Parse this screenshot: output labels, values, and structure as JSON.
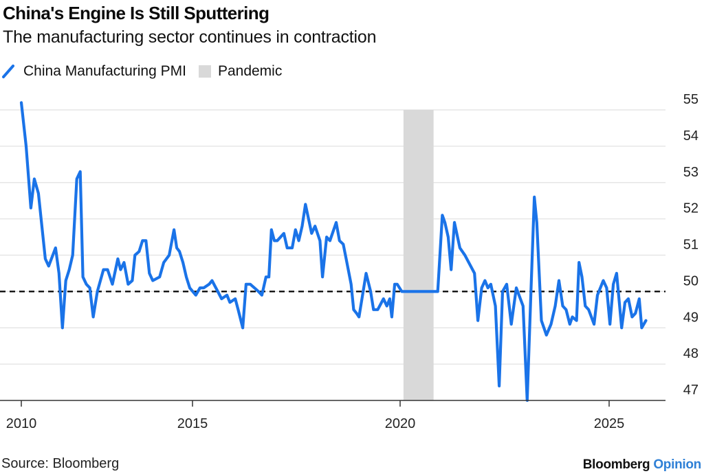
{
  "header": {
    "title": "China's Engine Is Still Sputtering",
    "subtitle": "The manufacturing sector continues in contraction"
  },
  "legend": [
    {
      "label": "China Manufacturing PMI",
      "kind": "line",
      "color": "#1a73e8"
    },
    {
      "label": "Pandemic",
      "kind": "band",
      "color": "#d9d9d9"
    }
  ],
  "footer": {
    "source": "Source: Bloomberg",
    "brand_primary": "Bloomberg",
    "brand_secondary": "Opinion"
  },
  "chart_data": {
    "type": "line",
    "title": "China's Engine Is Still Sputtering",
    "subtitle": "The manufacturing sector continues in contraction",
    "xlabel": "",
    "ylabel": "",
    "x_ticks": [
      2010,
      2015,
      2020,
      2025
    ],
    "x_tick_labels": [
      "2010",
      "2015",
      "2020",
      "2025"
    ],
    "y_ticks": [
      47,
      48,
      49,
      50,
      51,
      52,
      53,
      54,
      55
    ],
    "y_tick_labels": [
      "47",
      "48",
      "49",
      "50",
      "51",
      "52",
      "53",
      "54",
      "55"
    ],
    "ylim": [
      47,
      55.5
    ],
    "xlim": [
      2010,
      2026.3
    ],
    "y_axis_side": "right",
    "grid": true,
    "legend_position": "top-left",
    "reference_line": {
      "y": 50,
      "style": "dashed",
      "color": "#000000"
    },
    "shaded_regions": [
      {
        "name": "Pandemic",
        "x_start": 2020.08,
        "x_end": 2020.8,
        "color": "#d9d9d9"
      }
    ],
    "series": [
      {
        "name": "China Manufacturing PMI",
        "color": "#1a73e8",
        "x": [
          2010.0,
          2010.14,
          2010.28,
          2010.38,
          2010.5,
          2010.7,
          2010.8,
          2011.0,
          2011.1,
          2011.2,
          2011.3,
          2011.4,
          2011.5,
          2011.62,
          2011.72,
          2011.8,
          2011.9,
          2012.0,
          2012.1,
          2012.22,
          2012.4,
          2012.52,
          2012.66,
          2012.82,
          2012.9,
          2013.0,
          2013.12,
          2013.24,
          2013.32,
          2013.44,
          2013.54,
          2013.64,
          2013.74,
          2013.84,
          2014.04,
          2014.16,
          2014.32,
          2014.46,
          2014.54,
          2014.62,
          2014.72,
          2014.82,
          2014.92,
          2015.08,
          2015.18,
          2015.27,
          2015.4,
          2015.47,
          2015.61,
          2015.7,
          2015.83,
          2015.9,
          2016.03,
          2016.1,
          2016.21,
          2016.29,
          2016.39,
          2016.49,
          2016.59,
          2016.67,
          2016.77,
          2016.84,
          2016.9,
          2016.97,
          2017.04,
          2017.2,
          2017.28,
          2017.4,
          2017.48,
          2017.56,
          2017.64,
          2017.72,
          2017.87,
          2017.95,
          2018.07,
          2018.13,
          2018.23,
          2018.31,
          2018.46,
          2018.54,
          2018.63,
          2018.7,
          2018.82,
          2018.88,
          2018.95,
          2019.01,
          2019.18,
          2019.29,
          2019.36,
          2019.46,
          2019.6,
          2019.68,
          2019.75,
          2019.8,
          2019.87,
          2019.93,
          2020.04,
          2020.07,
          2020.13,
          2020.16,
          2020.18,
          2020.23,
          2020.8,
          2020.9,
          2021.01,
          2021.07,
          2021.15,
          2021.22,
          2021.3,
          2021.43,
          2021.55,
          2021.78,
          2021.86,
          2021.95,
          2022.03,
          2022.1,
          2022.17,
          2022.28,
          2022.37,
          2022.45,
          2022.55,
          2022.66,
          2022.78,
          2022.94,
          2023.04,
          2023.13,
          2023.21,
          2023.27,
          2023.38,
          2023.5,
          2023.61,
          2023.71,
          2023.8,
          2023.89,
          2023.97,
          2024.06,
          2024.12,
          2024.22,
          2024.28,
          2024.35,
          2024.43,
          2024.51,
          2024.64,
          2024.72,
          2024.86,
          2024.94,
          2025.02,
          2025.1,
          2025.18,
          2025.3,
          2025.38,
          2025.46,
          2025.55,
          2025.63,
          2025.72,
          2025.78,
          2025.88
        ],
        "values": [
          55.2,
          54.0,
          52.3,
          53.1,
          52.7,
          50.9,
          50.7,
          51.2,
          50.5,
          49.0,
          50.3,
          50.6,
          51.0,
          53.1,
          53.3,
          50.4,
          50.2,
          50.1,
          49.3,
          50.0,
          50.6,
          50.6,
          50.2,
          50.9,
          50.6,
          50.8,
          50.2,
          50.3,
          51.0,
          51.1,
          51.4,
          51.4,
          50.5,
          50.3,
          50.4,
          50.8,
          51.0,
          51.7,
          51.2,
          51.1,
          50.8,
          50.4,
          50.1,
          49.9,
          50.1,
          50.1,
          50.2,
          50.3,
          50.0,
          49.8,
          49.9,
          49.7,
          49.8,
          49.5,
          49.0,
          50.2,
          50.2,
          50.1,
          50.0,
          49.9,
          50.4,
          50.4,
          51.7,
          51.4,
          51.4,
          51.6,
          51.2,
          51.2,
          51.7,
          51.4,
          51.8,
          52.4,
          51.6,
          51.8,
          51.4,
          50.4,
          51.5,
          51.4,
          51.9,
          51.4,
          51.3,
          50.9,
          50.2,
          49.5,
          49.4,
          49.3,
          50.5,
          50.0,
          49.5,
          49.5,
          49.8,
          49.6,
          49.8,
          49.3,
          50.2,
          50.2,
          50.0,
          50.0,
          50.0,
          50.0,
          50.0,
          50.0,
          50.0,
          50.0,
          52.1,
          51.9,
          51.5,
          50.6,
          51.9,
          51.2,
          51.0,
          50.5,
          49.2,
          50.1,
          50.3,
          50.1,
          50.2,
          49.6,
          47.4,
          50.0,
          50.2,
          49.1,
          50.1,
          49.6,
          47.0,
          50.0,
          52.6,
          51.9,
          49.2,
          48.8,
          49.1,
          49.6,
          50.3,
          49.6,
          49.5,
          49.1,
          49.3,
          49.2,
          50.8,
          50.4,
          49.6,
          49.5,
          49.1,
          49.9,
          50.3,
          50.1,
          49.1,
          50.2,
          50.5,
          49.0,
          49.7,
          49.8,
          49.3,
          49.4,
          49.8,
          49.0,
          49.2
        ]
      }
    ]
  }
}
